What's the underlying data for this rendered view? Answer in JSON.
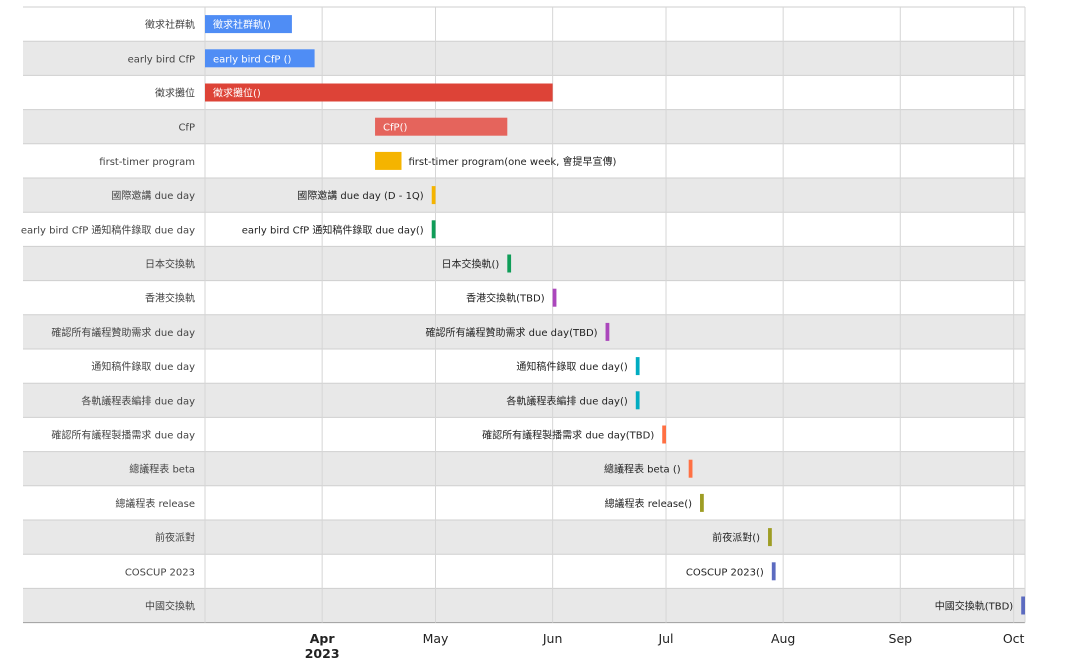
{
  "chart_data": {
    "type": "gantt",
    "x_axis": {
      "ticks": [
        {
          "label": "Apr",
          "sublabel": "2023",
          "date": "2023-04-01",
          "bold": true
        },
        {
          "label": "May",
          "date": "2023-05-01"
        },
        {
          "label": "Jun",
          "date": "2023-06-01"
        },
        {
          "label": "Jul",
          "date": "2023-07-01"
        },
        {
          "label": "Aug",
          "date": "2023-08-01"
        },
        {
          "label": "Sep",
          "date": "2023-09-01"
        },
        {
          "label": "Oct",
          "date": "2023-10-01"
        }
      ],
      "range": [
        "2023-03-01",
        "2023-10-04"
      ]
    },
    "grid": true,
    "rows": [
      {
        "row_label": "徵求社群軌",
        "bar_label": "徵求社群軌()",
        "start": "2023-03-01",
        "end": "2023-03-24",
        "color": "#4f8df5",
        "label_pos": "inside"
      },
      {
        "row_label": "early bird CfP",
        "bar_label": "early bird CfP ()",
        "start": "2023-03-01",
        "end": "2023-03-30",
        "color": "#4f8df5",
        "label_pos": "inside"
      },
      {
        "row_label": "徵求攤位",
        "bar_label": "徵求攤位()",
        "start": "2023-03-01",
        "end": "2023-06-01",
        "color": "#dd4337",
        "label_pos": "inside"
      },
      {
        "row_label": "CfP",
        "bar_label": "CfP()",
        "start": "2023-04-15",
        "end": "2023-05-20",
        "color": "#e5645c",
        "label_pos": "inside"
      },
      {
        "row_label": "first-timer program",
        "bar_label": "first-timer program(one week, 會提早宣傳)",
        "start": "2023-04-15",
        "end": "2023-04-22",
        "color": "#f5b400",
        "label_pos": "right"
      },
      {
        "row_label": "國際邀講 due day",
        "bar_label": "國際邀講 due day (D - 1Q)",
        "start": "2023-04-30",
        "end": "2023-05-01",
        "color": "#f5b400",
        "label_pos": "left"
      },
      {
        "row_label": "early bird CfP 通知稿件錄取 due day",
        "bar_label": "early bird CfP 通知稿件錄取 due day()",
        "start": "2023-04-30",
        "end": "2023-05-01",
        "color": "#0f9d58",
        "label_pos": "left"
      },
      {
        "row_label": "日本交換軌",
        "bar_label": "日本交換軌()",
        "start": "2023-05-20",
        "end": "2023-05-21",
        "color": "#0f9d58",
        "label_pos": "left"
      },
      {
        "row_label": "香港交換軌",
        "bar_label": "香港交換軌(TBD)",
        "start": "2023-06-01",
        "end": "2023-06-02",
        "color": "#ab47bc",
        "label_pos": "left"
      },
      {
        "row_label": "確認所有議程贊助需求 due day",
        "bar_label": "確認所有議程贊助需求 due day(TBD)",
        "start": "2023-06-15",
        "end": "2023-06-16",
        "color": "#ab47bc",
        "label_pos": "left"
      },
      {
        "row_label": "通知稿件錄取 due day",
        "bar_label": "通知稿件錄取 due day()",
        "start": "2023-06-23",
        "end": "2023-06-24",
        "color": "#00acc1",
        "label_pos": "left"
      },
      {
        "row_label": "各軌議程表編排 due day",
        "bar_label": "各軌議程表編排 due day()",
        "start": "2023-06-23",
        "end": "2023-06-24",
        "color": "#00acc1",
        "label_pos": "left"
      },
      {
        "row_label": "確認所有議程製播需求 due day",
        "bar_label": "確認所有議程製播需求 due day(TBD)",
        "start": "2023-06-30",
        "end": "2023-07-01",
        "color": "#ff7043",
        "label_pos": "left"
      },
      {
        "row_label": "總議程表 beta",
        "bar_label": "總議程表 beta ()",
        "start": "2023-07-07",
        "end": "2023-07-08",
        "color": "#ff7043",
        "label_pos": "left"
      },
      {
        "row_label": "總議程表 release",
        "bar_label": "總議程表 release()",
        "start": "2023-07-10",
        "end": "2023-07-11",
        "color": "#9e9d24",
        "label_pos": "left"
      },
      {
        "row_label": "前夜派對",
        "bar_label": "前夜派對()",
        "start": "2023-07-28",
        "end": "2023-07-29",
        "color": "#9e9d24",
        "label_pos": "left"
      },
      {
        "row_label": "COSCUP 2023",
        "bar_label": "COSCUP 2023()",
        "start": "2023-07-29",
        "end": "2023-07-30",
        "color": "#5c6bc0",
        "label_pos": "left"
      },
      {
        "row_label": "中國交換軌",
        "bar_label": "中國交換軌(TBD)",
        "start": "2023-10-03",
        "end": "2023-10-04",
        "color": "#5c6bc0",
        "label_pos": "left"
      }
    ]
  }
}
